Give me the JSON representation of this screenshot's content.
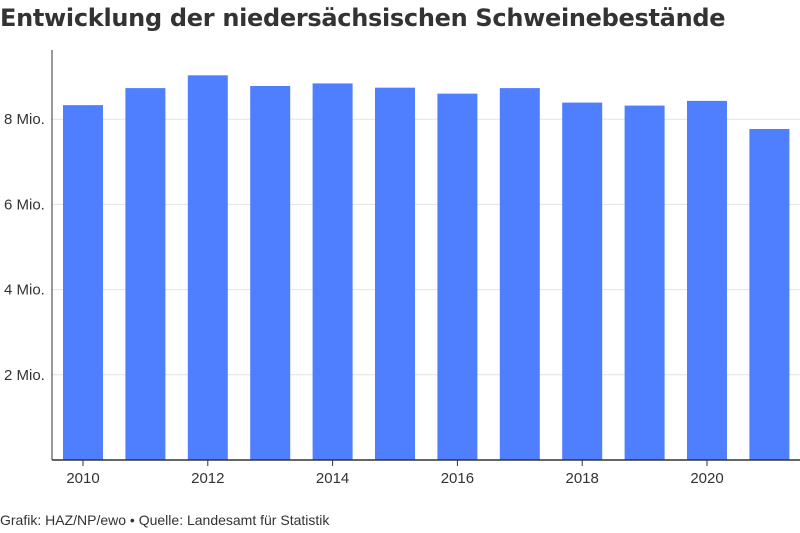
{
  "title": "Entwicklung der niedersächsischen Schweinebestände",
  "footer": {
    "credit": "Grafik: HAZ/NP/ewo",
    "separator": "•",
    "source": "Quelle: Landesamt für Statistik"
  },
  "colors": {
    "bar": "#4f7fff",
    "grid": "#e2e2e2",
    "axis": "#333333"
  },
  "chart_data": {
    "type": "bar",
    "categories": [
      2010,
      2011,
      2012,
      2013,
      2014,
      2015,
      2016,
      2017,
      2018,
      2019,
      2020,
      2021
    ],
    "values": [
      8.33,
      8.73,
      9.03,
      8.78,
      8.84,
      8.74,
      8.6,
      8.73,
      8.39,
      8.32,
      8.43,
      7.77
    ],
    "unit": "Mio.",
    "y_ticks": [
      2,
      4,
      6,
      8
    ],
    "y_tick_labels": [
      "2 Mio.",
      "4 Mio.",
      "6 Mio.",
      "8 Mio."
    ],
    "x_ticks": [
      2010,
      2012,
      2014,
      2016,
      2018,
      2020
    ],
    "x_tick_labels": [
      "2010",
      "2012",
      "2014",
      "2016",
      "2018",
      "2020"
    ],
    "ylim": [
      0,
      9.5
    ],
    "grid": true,
    "legend": "none"
  }
}
